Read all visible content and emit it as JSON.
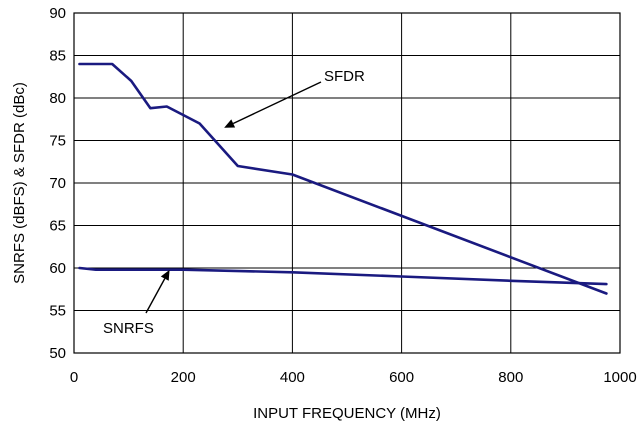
{
  "chart_data": {
    "type": "line",
    "xlabel": "INPUT FREQUENCY (MHz)",
    "ylabel": "SNRFS (dBFS) & SFDR (dBc)",
    "xlim": [
      0,
      1000
    ],
    "ylim": [
      50,
      90
    ],
    "xticks": [
      0,
      200,
      400,
      600,
      800,
      1000
    ],
    "yticks": [
      50,
      55,
      60,
      65,
      70,
      75,
      80,
      85,
      90
    ],
    "grid": true,
    "line_color": "#1a1a80",
    "series": [
      {
        "name": "SFDR",
        "x": [
          10,
          70,
          105,
          140,
          170,
          230,
          300,
          400,
          975
        ],
        "y": [
          84,
          84,
          82,
          78.8,
          79,
          77,
          72,
          71,
          57
        ]
      },
      {
        "name": "SNRFS",
        "x": [
          10,
          40,
          100,
          200,
          400,
          600,
          800,
          975
        ],
        "y": [
          60,
          59.8,
          59.8,
          59.8,
          59.5,
          59,
          58.5,
          58.1
        ]
      }
    ],
    "annotations": [
      {
        "text": "SFDR",
        "series": "SFDR",
        "point": [
          275,
          76.5
        ]
      },
      {
        "text": "SNRFS",
        "series": "SNRFS",
        "point": [
          175,
          59.9
        ]
      }
    ]
  }
}
